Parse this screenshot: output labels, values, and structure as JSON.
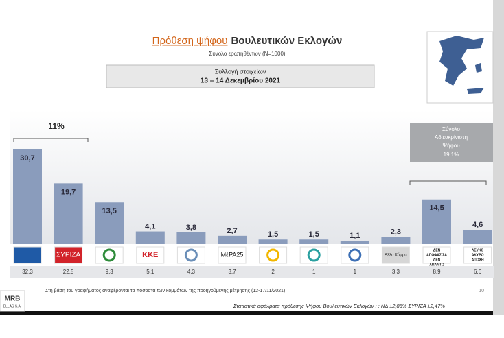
{
  "chart_data": {
    "type": "bar",
    "title_highlight": "Πρόθεση ψήφου",
    "title": "Βουλευτικών Εκλογών",
    "subtitle": "Σύνολο ερωτηθέντων (N=1000)",
    "period_label": "Συλλογή στοιχείων",
    "period": "13 – 14 Δεκεμβρίου 2021",
    "categories": [
      null,
      "ΣΥΡΙΖΑ",
      null,
      "ΚΚΕ",
      null,
      "ΜέΡΑ25",
      null,
      null,
      null,
      "Άλλο Κόμμα",
      "ΔΕΝ ΑΠΟΦΑΣΙΣΑ ΔΕΝ ΑΠΑΝΤΩ",
      "ΛΕΥΚΟ ΑΚΥΡΟ ΑΠΟΧΗ"
    ],
    "values": [
      30.7,
      19.7,
      13.5,
      4.1,
      3.8,
      2.7,
      1.5,
      1.5,
      1.1,
      2.3,
      14.5,
      4.6
    ],
    "value_labels": [
      "30,7",
      "19,7",
      "13,5",
      "4,1",
      "3,8",
      "2,7",
      "1,5",
      "1,5",
      "1,1",
      "2,3",
      "14,5",
      "4,6"
    ],
    "color": "#8a9cbc",
    "previous_values": [
      32.3,
      22.5,
      9.3,
      5.1,
      4.3,
      3.7,
      2,
      1,
      1,
      3.3,
      8.9,
      6.6
    ],
    "previous_value_labels": [
      "32,3",
      "22,5",
      "9,3",
      "5,1",
      "4,3",
      "3,7",
      "2",
      "1",
      "1",
      "3,3",
      "8,9",
      "6,6"
    ],
    "gap_annotation": "11%",
    "undecided_box": [
      "Σύνολο",
      "Αδιευκρίνιστη",
      "Ψήφου",
      "19,1%"
    ],
    "footnote": "Στη βάση του γραφήματος αναφέρονται τα ποσοστά των κομμάτων της προηγούμενης μέτρησης (12-17/11/2021)",
    "page_number": "10",
    "errors_note": "Στατιστικά σφάλματα πρόθεσης Ψήφου Βουλευτικών Εκλογών : : ΝΔ ±2,86% ΣΥΡΙΖΑ ±2,47%",
    "logo_text": [
      "MRB",
      "ELLAS S.A."
    ]
  }
}
